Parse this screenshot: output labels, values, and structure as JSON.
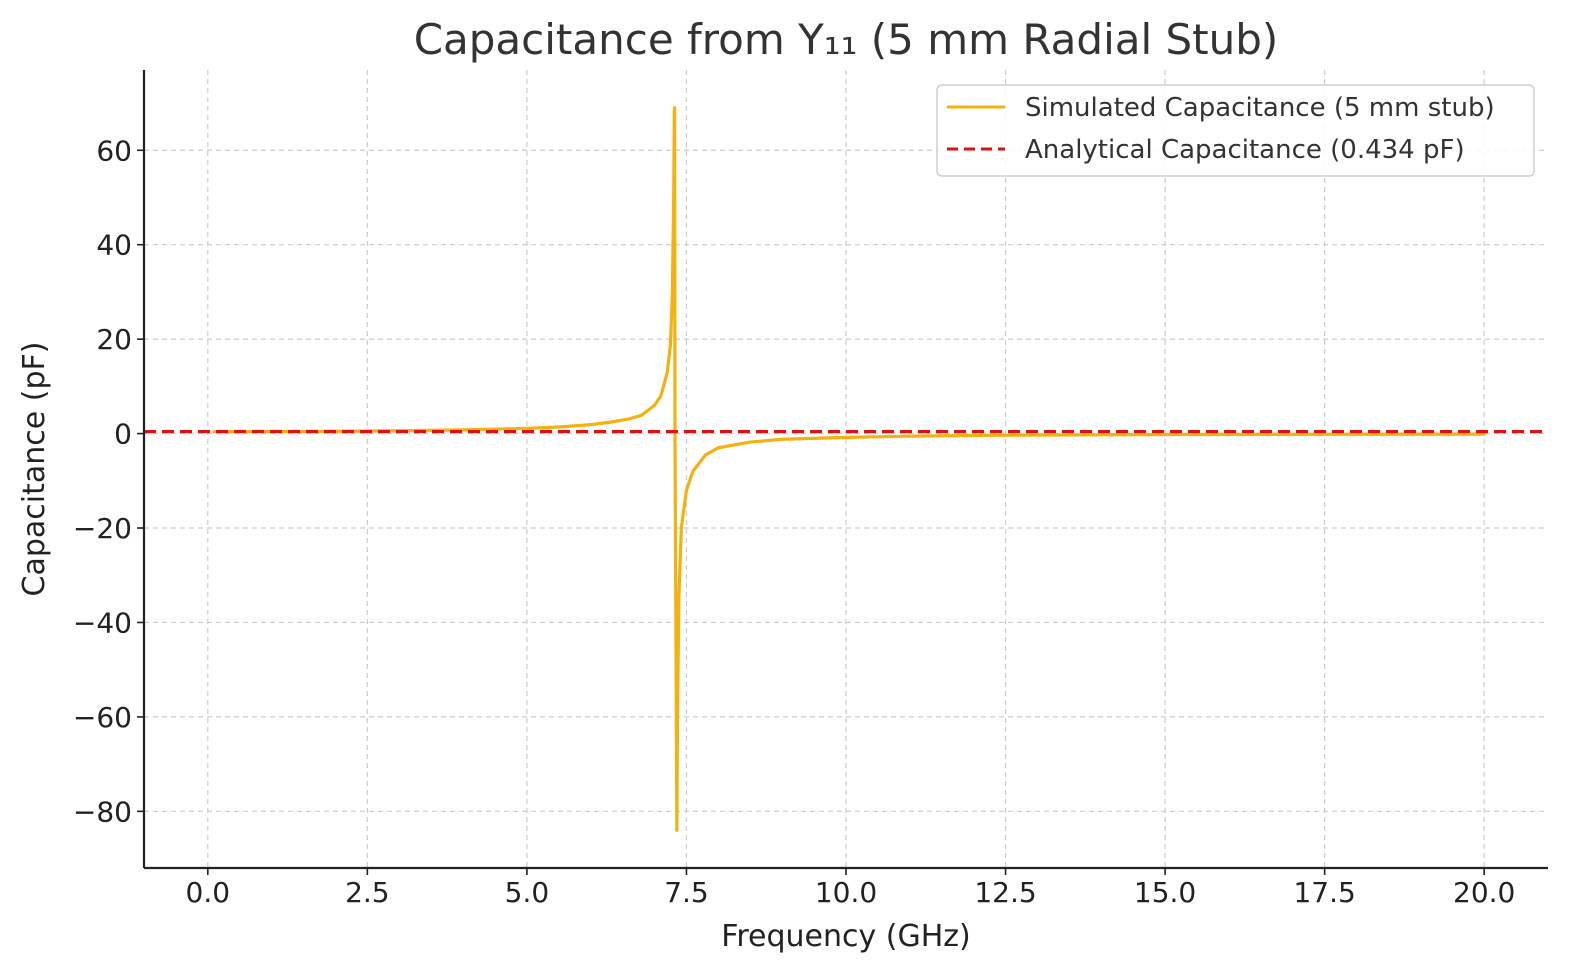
{
  "chart_data": {
    "type": "line",
    "title": "Capacitance from Y₁₁ (5 mm Radial Stub)",
    "xlabel": "Frequency (GHz)",
    "ylabel": "Capacitance (pF)",
    "xlim": [
      -1.0,
      21.0
    ],
    "ylim": [
      -92,
      77
    ],
    "xticks": [
      0.0,
      2.5,
      5.0,
      7.5,
      10.0,
      12.5,
      15.0,
      17.5,
      20.0
    ],
    "xtick_labels": [
      "0.0",
      "2.5",
      "5.0",
      "7.5",
      "10.0",
      "12.5",
      "15.0",
      "17.5",
      "20.0"
    ],
    "yticks": [
      -80,
      -60,
      -40,
      -20,
      0,
      20,
      40,
      60
    ],
    "ytick_labels": [
      "−80",
      "−60",
      "−40",
      "−20",
      "0",
      "20",
      "40",
      "60"
    ],
    "grid": true,
    "legend_position": "top-right",
    "series": [
      {
        "name": "Simulated Capacitance (5 mm stub)",
        "color": "#f5b10d",
        "style": "solid",
        "x": [
          0.1,
          1.0,
          2.0,
          3.0,
          4.0,
          5.0,
          5.5,
          6.0,
          6.3,
          6.6,
          6.8,
          7.0,
          7.1,
          7.2,
          7.25,
          7.28,
          7.3,
          7.31,
          7.315,
          7.32,
          7.35,
          7.36,
          7.38,
          7.42,
          7.5,
          7.6,
          7.8,
          8.0,
          8.5,
          9.0,
          10.0,
          11.0,
          12.0,
          13.0,
          15.0,
          17.5,
          20.0
        ],
        "y": [
          0.4,
          0.45,
          0.5,
          0.6,
          0.8,
          1.1,
          1.4,
          1.9,
          2.4,
          3.1,
          3.9,
          6.0,
          8.0,
          13.0,
          19.0,
          30.0,
          50.0,
          68.0,
          69.0,
          0.5,
          -84.0,
          -60.0,
          -35.0,
          -20.0,
          -12.0,
          -8.0,
          -4.5,
          -3.0,
          -1.8,
          -1.2,
          -0.8,
          -0.55,
          -0.4,
          -0.3,
          -0.2,
          -0.15,
          -0.12
        ]
      },
      {
        "name": "Analytical Capacitance (0.434 pF)",
        "color": "#e01010",
        "style": "dashed",
        "x": [
          -1.0,
          21.0
        ],
        "y": [
          0.434,
          0.434
        ]
      }
    ]
  }
}
